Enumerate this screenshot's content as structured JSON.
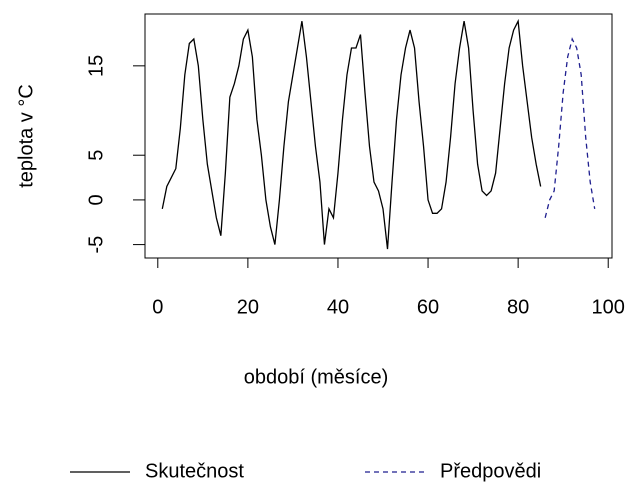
{
  "chart_data": {
    "type": "line",
    "xlabel": "období (měsíce)",
    "ylabel": "teplota v °C",
    "xlim": [
      -2.84,
      100.84
    ],
    "ylim": [
      -6.5,
      20.8
    ],
    "xticks": [
      0,
      20,
      40,
      60,
      80,
      100
    ],
    "yticks": [
      -5,
      0,
      5,
      15
    ],
    "series": [
      {
        "name": "Skutečnost",
        "color": "#000000",
        "dash": false,
        "x": [
          1,
          2,
          3,
          4,
          5,
          6,
          7,
          8,
          9,
          10,
          11,
          12,
          13,
          14,
          15,
          16,
          17,
          18,
          19,
          20,
          21,
          22,
          23,
          24,
          25,
          26,
          27,
          28,
          29,
          30,
          31,
          32,
          33,
          34,
          35,
          36,
          37,
          38,
          39,
          40,
          41,
          42,
          43,
          44,
          45,
          46,
          47,
          48,
          49,
          50,
          51,
          52,
          53,
          54,
          55,
          56,
          57,
          58,
          59,
          60,
          61,
          62,
          63,
          64,
          65,
          66,
          67,
          68,
          69,
          70,
          71,
          72,
          73,
          74,
          75,
          76,
          77,
          78,
          79,
          80,
          81,
          82,
          83,
          84,
          85
        ],
        "values": [
          -1,
          1.5,
          2.5,
          3.5,
          8,
          14,
          17.5,
          18,
          15,
          9,
          4,
          1,
          -2,
          -4,
          3,
          11.5,
          13,
          15,
          18,
          19,
          16,
          9,
          5,
          0,
          -3,
          -5,
          0,
          6,
          11,
          14,
          17,
          20,
          16,
          11,
          6,
          2,
          -5,
          -1,
          -2,
          3,
          9,
          14,
          17,
          17,
          18.5,
          12,
          6,
          2,
          1,
          -1,
          -5.5,
          2,
          9,
          14,
          17,
          19,
          17,
          11,
          6,
          0,
          -1.5,
          -1.5,
          -1,
          2,
          7,
          13,
          17,
          20,
          17,
          10,
          4,
          1,
          0.5,
          1,
          3,
          8,
          13,
          17,
          19,
          20,
          15,
          11,
          7,
          4,
          1.5
        ]
      },
      {
        "name": "Předpovědi",
        "color": "#1f1f8f",
        "dash": true,
        "x": [
          86,
          87,
          88,
          89,
          90,
          91,
          92,
          93,
          94,
          95,
          96,
          97
        ],
        "values": [
          -2,
          0,
          1,
          6,
          12,
          16,
          18,
          17,
          14,
          7,
          2,
          -1
        ]
      }
    ]
  }
}
